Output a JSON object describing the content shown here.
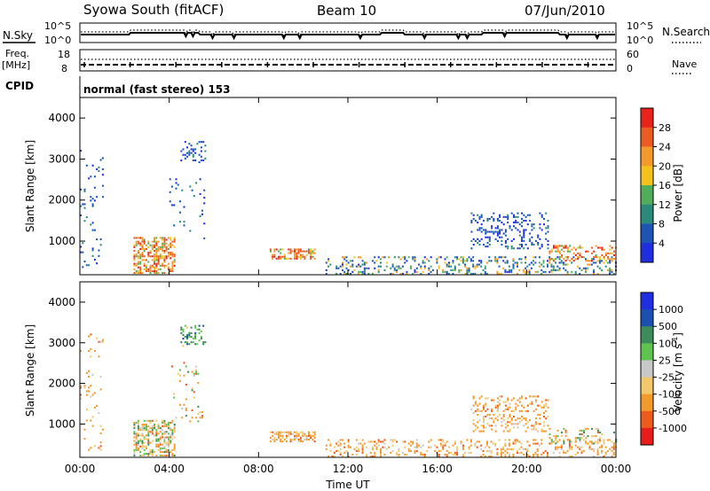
{
  "header": {
    "site": "Syowa South (fitACF)",
    "beam": "Beam 10",
    "date": "07/Jun/2010"
  },
  "top_panel": {
    "left_label": "N.Sky",
    "right_label": "N.Search",
    "left_ticks": [
      "10^5",
      "10^0"
    ],
    "right_ticks": [
      "10^5",
      "10^0"
    ]
  },
  "freq_panel": {
    "left_label_line1": "Freq.",
    "left_label_line2": "[MHz]",
    "right_label": "Nave",
    "left_ticks": [
      "18",
      "8"
    ],
    "right_ticks": [
      "60",
      "0"
    ]
  },
  "cpid": {
    "label": "CPID",
    "text": "normal (fast stereo) 153"
  },
  "colors": {
    "power": [
      "#1f2fe0",
      "#1d55b4",
      "#2b8a7c",
      "#52ad5a",
      "#f4c21a",
      "#f39a2b",
      "#ec5b21",
      "#e8231a"
    ],
    "velocity": [
      "#e81d1a",
      "#ee5a1c",
      "#f29a2c",
      "#f3c86a",
      "#c8c8c8",
      "#5fc44f",
      "#3c8c5a",
      "#1d4fb0",
      "#1f2ee0"
    ]
  },
  "chart_data": [
    {
      "type": "heatmap",
      "name": "power",
      "ylabel": "Slant Range [km]",
      "ylim": [
        180,
        4500
      ],
      "y_ticks": [
        1000,
        2000,
        3000,
        4000
      ],
      "x_ticks": [
        "00:00",
        "04:00",
        "08:00",
        "12:00",
        "16:00",
        "20:00",
        "00:00"
      ],
      "colorbar": {
        "label": "Power [dB]",
        "ticks": [
          "4",
          "8",
          "12",
          "16",
          "20",
          "24",
          "28"
        ],
        "range": [
          0,
          32
        ]
      },
      "clusters": [
        {
          "t": [
            0.0,
            1.0
          ],
          "r": [
            300,
            3200
          ],
          "level": "low",
          "density": "sparse"
        },
        {
          "t": [
            2.4,
            4.2
          ],
          "r": [
            200,
            1100
          ],
          "level": "high",
          "density": "dense"
        },
        {
          "t": [
            4.5,
            5.6
          ],
          "r": [
            2900,
            3400
          ],
          "level": "low",
          "density": "medium"
        },
        {
          "t": [
            4.0,
            5.6
          ],
          "r": [
            1000,
            2500
          ],
          "level": "low",
          "density": "sparse"
        },
        {
          "t": [
            8.5,
            10.5
          ],
          "r": [
            550,
            780
          ],
          "level": "high",
          "density": "dense"
        },
        {
          "t": [
            11.0,
            24.0
          ],
          "r": [
            180,
            600
          ],
          "level": "mixed",
          "density": "medium"
        },
        {
          "t": [
            17.5,
            21.0
          ],
          "r": [
            800,
            1700
          ],
          "level": "low",
          "density": "medium"
        },
        {
          "t": [
            21.0,
            24.0
          ],
          "r": [
            500,
            900
          ],
          "level": "high",
          "density": "medium"
        }
      ]
    },
    {
      "type": "heatmap",
      "name": "velocity",
      "ylabel": "Slant Range [km]",
      "xlabel": "Time UT",
      "ylim": [
        180,
        4500
      ],
      "y_ticks": [
        1000,
        2000,
        3000,
        4000
      ],
      "x_ticks": [
        "00:00",
        "04:00",
        "08:00",
        "12:00",
        "16:00",
        "20:00",
        "00:00"
      ],
      "colorbar": {
        "label": "Velocity [m s",
        "label_sup": "-1",
        "label_end": "]",
        "ticks": [
          "-1000",
          "-500",
          "-100",
          "-25",
          "25",
          "100",
          "500",
          "1000"
        ]
      },
      "clusters": [
        {
          "t": [
            0.0,
            1.0
          ],
          "r": [
            300,
            3200
          ],
          "level": "neg",
          "density": "sparse"
        },
        {
          "t": [
            2.4,
            4.2
          ],
          "r": [
            200,
            1100
          ],
          "level": "mixed",
          "density": "dense"
        },
        {
          "t": [
            4.5,
            5.6
          ],
          "r": [
            2900,
            3400
          ],
          "level": "pos",
          "density": "medium"
        },
        {
          "t": [
            4.0,
            5.6
          ],
          "r": [
            1000,
            2500
          ],
          "level": "mixed",
          "density": "sparse"
        },
        {
          "t": [
            8.5,
            10.5
          ],
          "r": [
            550,
            780
          ],
          "level": "neg",
          "density": "dense"
        },
        {
          "t": [
            11.0,
            24.0
          ],
          "r": [
            180,
            600
          ],
          "level": "neg",
          "density": "medium"
        },
        {
          "t": [
            17.5,
            21.0
          ],
          "r": [
            800,
            1700
          ],
          "level": "neg",
          "density": "medium"
        },
        {
          "t": [
            21.0,
            24.0
          ],
          "r": [
            500,
            900
          ],
          "level": "mixed",
          "density": "medium"
        }
      ]
    }
  ]
}
